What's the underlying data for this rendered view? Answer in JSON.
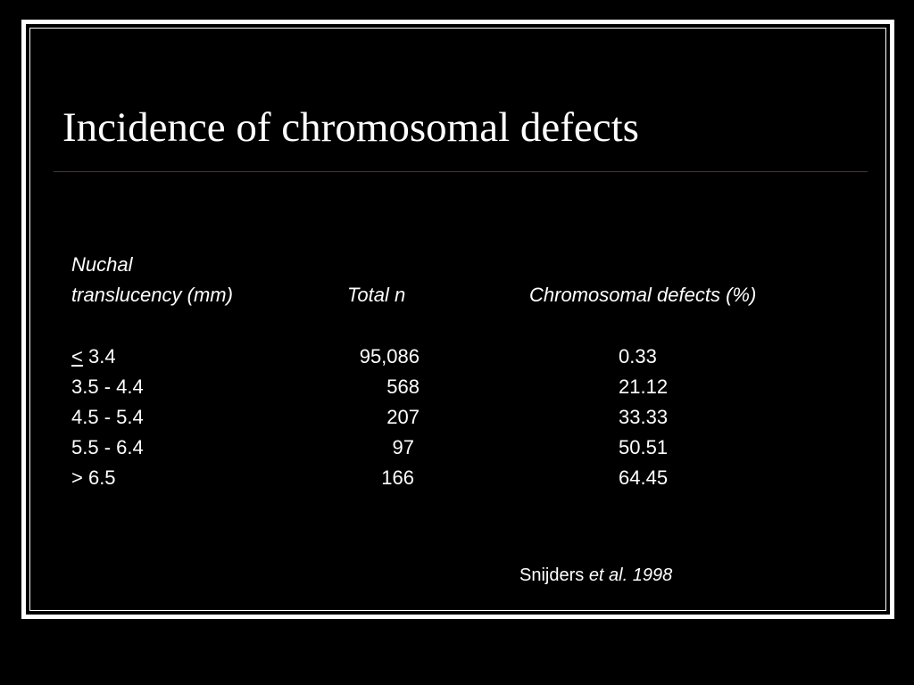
{
  "slide": {
    "title": "Incidence of chromosomal defects",
    "accent_rule_color": "#8b1a1a"
  },
  "table": {
    "header": {
      "col1_line1": "Nuchal",
      "col1_line2": "translucency (mm)",
      "col2": "Total  n",
      "col3": "Chromosomal defects  (%)"
    },
    "rows": [
      {
        "symbol": "<",
        "range": " 3.4",
        "total": "95,086",
        "defects": "0.33"
      },
      {
        "range": "3.5 - 4.4",
        "total": "568",
        "defects": "21.12"
      },
      {
        "range": "4.5 - 5.4",
        "total": "207",
        "defects": "33.33"
      },
      {
        "range": "5.5 - 6.4",
        "total": "97",
        "defects": "50.51"
      },
      {
        "range": "> 6.5",
        "total": "166",
        "defects": "64.45"
      }
    ]
  },
  "citation": {
    "author": "Snijders ",
    "ref": "et al. 1998"
  }
}
